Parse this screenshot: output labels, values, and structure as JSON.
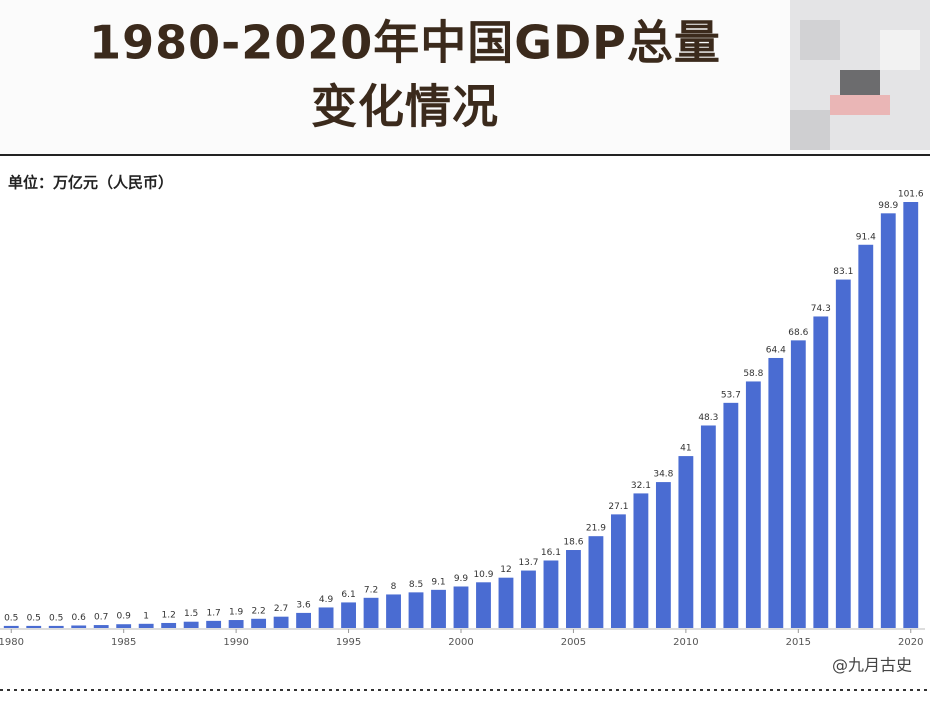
{
  "chart_data": {
    "type": "bar",
    "title": [
      "1980-2020年中国GDP总量",
      "变化情况"
    ],
    "subtitle": "单位：万亿元（人民币）",
    "annotation": "@九月古史",
    "color": "#4a6cd2",
    "categories": [
      "1980",
      null,
      null,
      null,
      null,
      "1985",
      null,
      null,
      null,
      null,
      "1990",
      null,
      null,
      null,
      null,
      "1995",
      null,
      null,
      null,
      null,
      "2000",
      null,
      null,
      null,
      null,
      "2005",
      null,
      null,
      null,
      null,
      "2010",
      null,
      null,
      null,
      null,
      "2015",
      null,
      null,
      null,
      null,
      "2020"
    ],
    "values": [
      0.5,
      0.5,
      0.5,
      0.6,
      0.7,
      0.9,
      1,
      1.2,
      1.5,
      1.7,
      1.9,
      2.2,
      2.7,
      3.6,
      4.9,
      6.1,
      7.2,
      8,
      8.5,
      9.1,
      9.9,
      10.9,
      12,
      13.7,
      16.1,
      18.6,
      21.9,
      27.1,
      32.1,
      34.8,
      41,
      48.3,
      53.7,
      58.8,
      64.4,
      68.6,
      74.3,
      83.1,
      91.4,
      98.9,
      101.6
    ]
  }
}
